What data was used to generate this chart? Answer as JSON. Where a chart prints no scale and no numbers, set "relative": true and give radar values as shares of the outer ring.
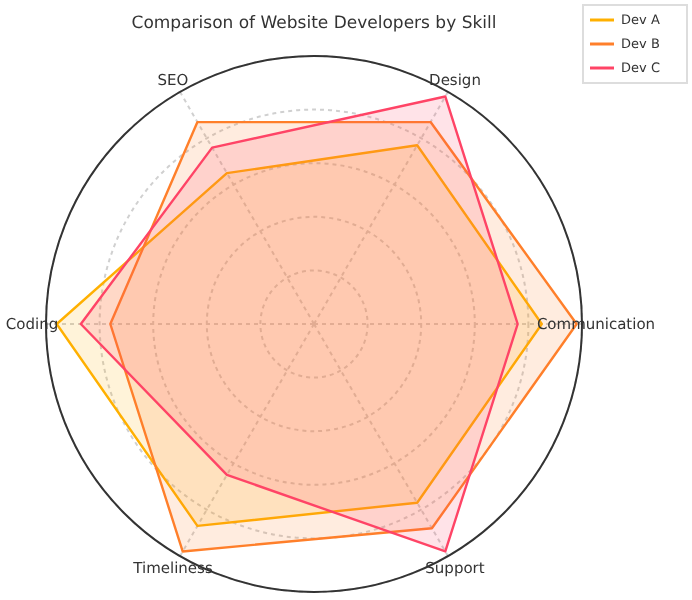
{
  "chart_data": {
    "type": "radar",
    "title": "Comparison of Website Developers by Skill",
    "relative": true,
    "grid": true,
    "legend": "top right",
    "categories": [
      "Design",
      "Communication",
      "Support",
      "Timeliness",
      "Coding",
      "SEO"
    ],
    "series": [
      {
        "name": "Dev A",
        "color": "#ffb000",
        "values": [
          0.77,
          0.85,
          0.77,
          0.87,
          0.96,
          0.65
        ]
      },
      {
        "name": "Dev B",
        "color": "#ff7f2a",
        "values": [
          0.87,
          0.98,
          0.88,
          0.98,
          0.76,
          0.87
        ]
      },
      {
        "name": "Dev C",
        "color": "#ff4466",
        "values": [
          0.98,
          0.76,
          0.98,
          0.65,
          0.87,
          0.76
        ]
      }
    ]
  }
}
